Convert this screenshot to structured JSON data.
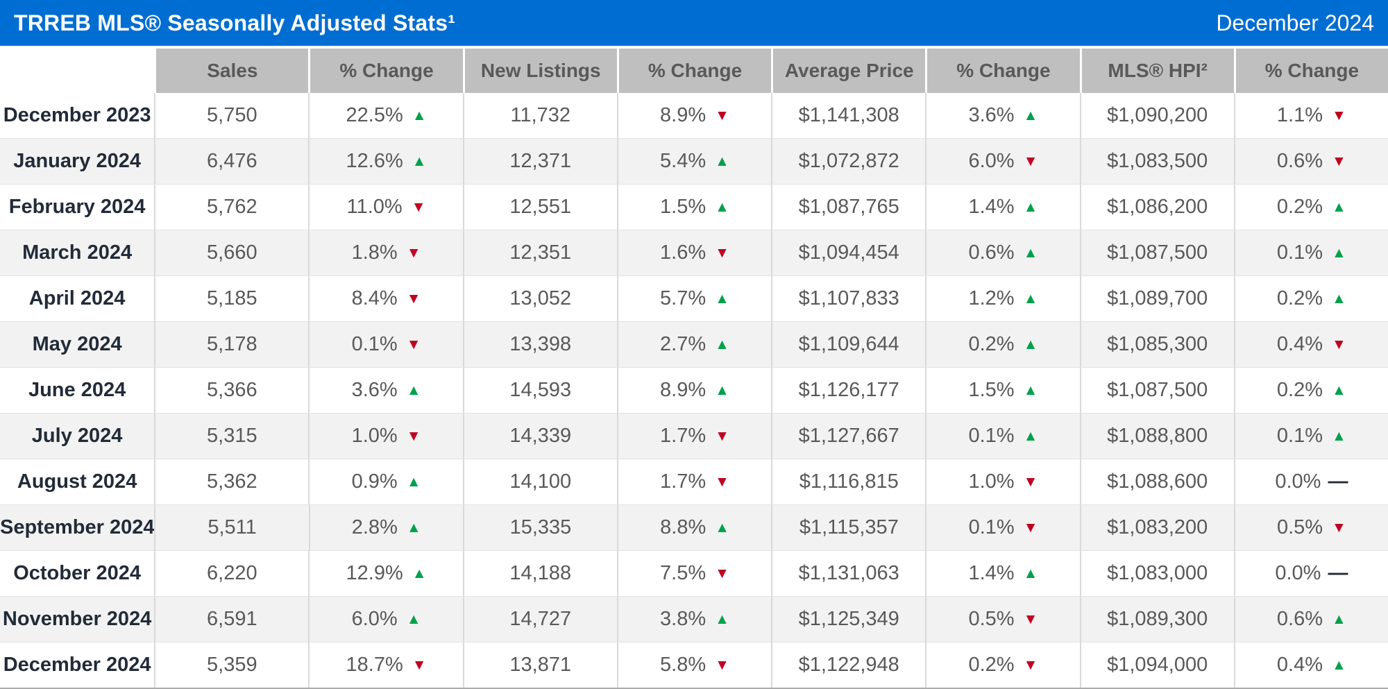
{
  "title_bar": {
    "title": "TRREB MLS® Seasonally Adjusted Stats¹",
    "period": "December 2024"
  },
  "icons": {
    "up": "▲",
    "down": "▼",
    "flat": "—"
  },
  "colors": {
    "accent_blue": "#006DD2",
    "header_gray": "#BFBFBF",
    "header_text": "#595959",
    "alt_row": "#F2F2F2",
    "label_text": "#222B38",
    "value_text": "#595959",
    "up_green": "#00A14B",
    "down_red": "#C00021",
    "flat_dash": "#222B38",
    "grid_line": "#D9D9D9"
  },
  "chart_data": {
    "type": "table",
    "title": "TRREB MLS® Seasonally Adjusted Stats¹",
    "columns": [
      {
        "key": "label",
        "label": ""
      },
      {
        "key": "sales",
        "label": "Sales"
      },
      {
        "key": "sales_change",
        "label": "% Change"
      },
      {
        "key": "new_listings",
        "label": "New Listings"
      },
      {
        "key": "new_listings_change",
        "label": "% Change"
      },
      {
        "key": "avg_price",
        "label": "Average Price"
      },
      {
        "key": "avg_price_change",
        "label": "% Change"
      },
      {
        "key": "hpi",
        "label": "MLS® HPI²"
      },
      {
        "key": "hpi_change",
        "label": "% Change"
      }
    ],
    "rows": [
      {
        "label": "December 2023",
        "sales": "5,750",
        "sales_change": {
          "value": "22.5%",
          "dir": "up"
        },
        "new_listings": "11,732",
        "new_listings_change": {
          "value": "8.9%",
          "dir": "down"
        },
        "avg_price": "$1,141,308",
        "avg_price_change": {
          "value": "3.6%",
          "dir": "up"
        },
        "hpi": "$1,090,200",
        "hpi_change": {
          "value": "1.1%",
          "dir": "down"
        }
      },
      {
        "label": "January 2024",
        "sales": "6,476",
        "sales_change": {
          "value": "12.6%",
          "dir": "up"
        },
        "new_listings": "12,371",
        "new_listings_change": {
          "value": "5.4%",
          "dir": "up"
        },
        "avg_price": "$1,072,872",
        "avg_price_change": {
          "value": "6.0%",
          "dir": "down"
        },
        "hpi": "$1,083,500",
        "hpi_change": {
          "value": "0.6%",
          "dir": "down"
        }
      },
      {
        "label": "February 2024",
        "sales": "5,762",
        "sales_change": {
          "value": "11.0%",
          "dir": "down"
        },
        "new_listings": "12,551",
        "new_listings_change": {
          "value": "1.5%",
          "dir": "up"
        },
        "avg_price": "$1,087,765",
        "avg_price_change": {
          "value": "1.4%",
          "dir": "up"
        },
        "hpi": "$1,086,200",
        "hpi_change": {
          "value": "0.2%",
          "dir": "up"
        }
      },
      {
        "label": "March 2024",
        "sales": "5,660",
        "sales_change": {
          "value": "1.8%",
          "dir": "down"
        },
        "new_listings": "12,351",
        "new_listings_change": {
          "value": "1.6%",
          "dir": "down"
        },
        "avg_price": "$1,094,454",
        "avg_price_change": {
          "value": "0.6%",
          "dir": "up"
        },
        "hpi": "$1,087,500",
        "hpi_change": {
          "value": "0.1%",
          "dir": "up"
        }
      },
      {
        "label": "April 2024",
        "sales": "5,185",
        "sales_change": {
          "value": "8.4%",
          "dir": "down"
        },
        "new_listings": "13,052",
        "new_listings_change": {
          "value": "5.7%",
          "dir": "up"
        },
        "avg_price": "$1,107,833",
        "avg_price_change": {
          "value": "1.2%",
          "dir": "up"
        },
        "hpi": "$1,089,700",
        "hpi_change": {
          "value": "0.2%",
          "dir": "up"
        }
      },
      {
        "label": "May 2024",
        "sales": "5,178",
        "sales_change": {
          "value": "0.1%",
          "dir": "down"
        },
        "new_listings": "13,398",
        "new_listings_change": {
          "value": "2.7%",
          "dir": "up"
        },
        "avg_price": "$1,109,644",
        "avg_price_change": {
          "value": "0.2%",
          "dir": "up"
        },
        "hpi": "$1,085,300",
        "hpi_change": {
          "value": "0.4%",
          "dir": "down"
        }
      },
      {
        "label": "June 2024",
        "sales": "5,366",
        "sales_change": {
          "value": "3.6%",
          "dir": "up"
        },
        "new_listings": "14,593",
        "new_listings_change": {
          "value": "8.9%",
          "dir": "up"
        },
        "avg_price": "$1,126,177",
        "avg_price_change": {
          "value": "1.5%",
          "dir": "up"
        },
        "hpi": "$1,087,500",
        "hpi_change": {
          "value": "0.2%",
          "dir": "up"
        }
      },
      {
        "label": "July 2024",
        "sales": "5,315",
        "sales_change": {
          "value": "1.0%",
          "dir": "down"
        },
        "new_listings": "14,339",
        "new_listings_change": {
          "value": "1.7%",
          "dir": "down"
        },
        "avg_price": "$1,127,667",
        "avg_price_change": {
          "value": "0.1%",
          "dir": "up"
        },
        "hpi": "$1,088,800",
        "hpi_change": {
          "value": "0.1%",
          "dir": "up"
        }
      },
      {
        "label": "August 2024",
        "sales": "5,362",
        "sales_change": {
          "value": "0.9%",
          "dir": "up"
        },
        "new_listings": "14,100",
        "new_listings_change": {
          "value": "1.7%",
          "dir": "down"
        },
        "avg_price": "$1,116,815",
        "avg_price_change": {
          "value": "1.0%",
          "dir": "down"
        },
        "hpi": "$1,088,600",
        "hpi_change": {
          "value": "0.0%",
          "dir": "flat"
        }
      },
      {
        "label": "September 2024",
        "sales": "5,511",
        "sales_change": {
          "value": "2.8%",
          "dir": "up"
        },
        "new_listings": "15,335",
        "new_listings_change": {
          "value": "8.8%",
          "dir": "up"
        },
        "avg_price": "$1,115,357",
        "avg_price_change": {
          "value": "0.1%",
          "dir": "down"
        },
        "hpi": "$1,083,200",
        "hpi_change": {
          "value": "0.5%",
          "dir": "down"
        }
      },
      {
        "label": "October 2024",
        "sales": "6,220",
        "sales_change": {
          "value": "12.9%",
          "dir": "up"
        },
        "new_listings": "14,188",
        "new_listings_change": {
          "value": "7.5%",
          "dir": "down"
        },
        "avg_price": "$1,131,063",
        "avg_price_change": {
          "value": "1.4%",
          "dir": "up"
        },
        "hpi": "$1,083,000",
        "hpi_change": {
          "value": "0.0%",
          "dir": "flat"
        }
      },
      {
        "label": "November 2024",
        "sales": "6,591",
        "sales_change": {
          "value": "6.0%",
          "dir": "up"
        },
        "new_listings": "14,727",
        "new_listings_change": {
          "value": "3.8%",
          "dir": "up"
        },
        "avg_price": "$1,125,349",
        "avg_price_change": {
          "value": "0.5%",
          "dir": "down"
        },
        "hpi": "$1,089,300",
        "hpi_change": {
          "value": "0.6%",
          "dir": "up"
        }
      },
      {
        "label": "December 2024",
        "sales": "5,359",
        "sales_change": {
          "value": "18.7%",
          "dir": "down"
        },
        "new_listings": "13,871",
        "new_listings_change": {
          "value": "5.8%",
          "dir": "down"
        },
        "avg_price": "$1,122,948",
        "avg_price_change": {
          "value": "0.2%",
          "dir": "down"
        },
        "hpi": "$1,094,000",
        "hpi_change": {
          "value": "0.4%",
          "dir": "up"
        }
      }
    ]
  }
}
